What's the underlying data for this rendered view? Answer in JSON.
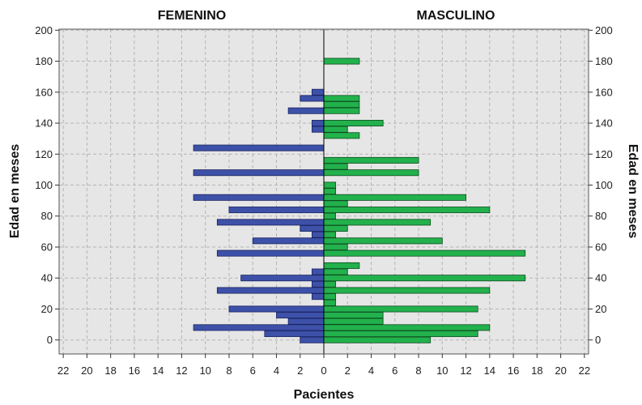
{
  "chart_data": {
    "type": "bar",
    "orientation": "horizontal",
    "layout": "population-pyramid",
    "panels": [
      {
        "title": "FEMENINO",
        "side": "left"
      },
      {
        "title": "MASCULINO",
        "side": "right"
      }
    ],
    "xlabel": "Pacientes",
    "ylabel": "Edad en meses",
    "xlim": [
      0,
      22
    ],
    "ylim": [
      -10,
      200
    ],
    "x_ticks": [
      "22",
      "20",
      "18",
      "16",
      "14",
      "12",
      "10",
      "8",
      "6",
      "4",
      "2",
      "0",
      "2",
      "4",
      "6",
      "8",
      "10",
      "12",
      "14",
      "16",
      "18",
      "20",
      "22"
    ],
    "y_ticks": [
      "0",
      "20",
      "40",
      "60",
      "80",
      "100",
      "120",
      "140",
      "160",
      "180",
      "200"
    ],
    "y_tick_values": [
      0,
      20,
      40,
      60,
      80,
      100,
      120,
      140,
      160,
      180,
      200
    ],
    "age": [
      0,
      4,
      8,
      12,
      16,
      20,
      24,
      28,
      32,
      36,
      40,
      44,
      48,
      52,
      56,
      60,
      64,
      68,
      72,
      76,
      80,
      84,
      88,
      92,
      96,
      100,
      104,
      108,
      112,
      116,
      120,
      124,
      128,
      132,
      136,
      140,
      144,
      148,
      152,
      156,
      160,
      164,
      168,
      172,
      176,
      180
    ],
    "series": [
      {
        "name": "FEMENINO",
        "color": "#3d51a8",
        "values": [
          2,
          5,
          11,
          3,
          4,
          8,
          0,
          1,
          9,
          1,
          7,
          1,
          0,
          0,
          9,
          0,
          6,
          1,
          2,
          9,
          0,
          8,
          0,
          11,
          0,
          0,
          0,
          11,
          0,
          0,
          0,
          11,
          0,
          0,
          1,
          1,
          0,
          3,
          0,
          2,
          1,
          0,
          0,
          0,
          0,
          0
        ]
      },
      {
        "name": "MASCULINO",
        "color": "#22b14c",
        "values": [
          9,
          13,
          14,
          5,
          5,
          13,
          1,
          1,
          14,
          1,
          17,
          2,
          3,
          0,
          17,
          2,
          10,
          1,
          2,
          9,
          1,
          14,
          2,
          12,
          1,
          1,
          0,
          8,
          2,
          8,
          0,
          0,
          0,
          3,
          2,
          5,
          0,
          3,
          3,
          3,
          0,
          0,
          0,
          0,
          0,
          3
        ]
      }
    ],
    "grid": true,
    "colors": {
      "female": "#3d51a8",
      "male": "#22b14c",
      "plot_background": "#e6e6e6",
      "grid": "#b4b4b4"
    }
  }
}
